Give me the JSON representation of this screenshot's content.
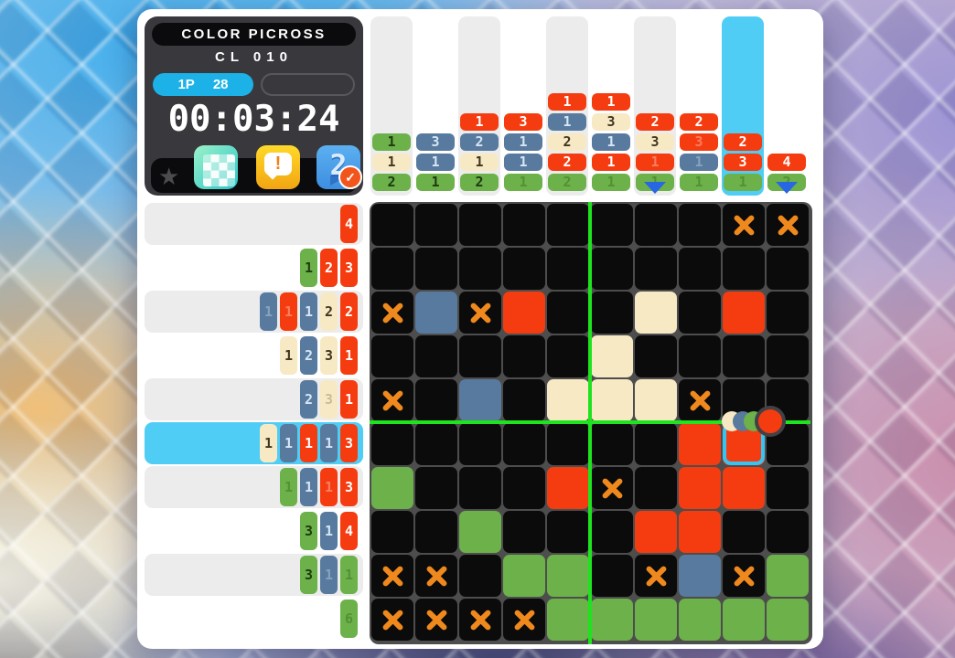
{
  "info": {
    "title": "COLOR PICROSS",
    "code": "CL 010",
    "player_label": "1P",
    "cleared_count": "28",
    "timer": "00:03:24",
    "star_glyph": "★",
    "icons": [
      {
        "name": "palette-grid-icon"
      },
      {
        "name": "alert-icon",
        "glyph": "!"
      },
      {
        "name": "page-2-icon",
        "glyph": "2",
        "badge_glyph": "✓"
      }
    ]
  },
  "colors": {
    "red": "#f53c10",
    "green": "#6cb149",
    "blue": "#577a9e",
    "beige": "#f8e9c5",
    "empty": "#0b0b0b",
    "x_mark": "#ef891d",
    "highlight": "#4fcdf5",
    "guide": "#1fe31f",
    "cursor": "#38c4f2"
  },
  "board": {
    "rows": 10,
    "cols": 10,
    "highlight_row": 6,
    "highlight_col": 9,
    "cursor": {
      "row": 6,
      "col": 9
    },
    "marker_columns": [
      7,
      10
    ],
    "col_hints": [
      [
        {
          "n": "1",
          "c": "green"
        },
        {
          "n": "1",
          "c": "beige"
        },
        {
          "n": "2",
          "c": "green"
        }
      ],
      [
        {
          "n": "3",
          "c": "blue"
        },
        {
          "n": "1",
          "c": "blue"
        },
        {
          "n": "1",
          "c": "green"
        }
      ],
      [
        {
          "n": "1",
          "c": "red"
        },
        {
          "n": "2",
          "c": "blue"
        },
        {
          "n": "1",
          "c": "beige"
        },
        {
          "n": "2",
          "c": "green"
        }
      ],
      [
        {
          "n": "3",
          "c": "red"
        },
        {
          "n": "1",
          "c": "blue"
        },
        {
          "n": "1",
          "c": "blue"
        },
        {
          "n": "1",
          "c": "green",
          "f": true
        }
      ],
      [
        {
          "n": "1",
          "c": "red"
        },
        {
          "n": "1",
          "c": "blue"
        },
        {
          "n": "2",
          "c": "beige"
        },
        {
          "n": "2",
          "c": "red"
        },
        {
          "n": "2",
          "c": "green",
          "f": true
        }
      ],
      [
        {
          "n": "1",
          "c": "red"
        },
        {
          "n": "3",
          "c": "beige"
        },
        {
          "n": "1",
          "c": "blue"
        },
        {
          "n": "1",
          "c": "red"
        },
        {
          "n": "1",
          "c": "green",
          "f": true
        }
      ],
      [
        {
          "n": "2",
          "c": "red"
        },
        {
          "n": "3",
          "c": "beige"
        },
        {
          "n": "1",
          "c": "red",
          "f": true
        },
        {
          "n": "1",
          "c": "green",
          "f": true
        }
      ],
      [
        {
          "n": "2",
          "c": "red"
        },
        {
          "n": "3",
          "c": "red",
          "f": true
        },
        {
          "n": "1",
          "c": "blue",
          "f": true
        },
        {
          "n": "1",
          "c": "green",
          "f": true
        }
      ],
      [
        {
          "n": "2",
          "c": "red"
        },
        {
          "n": "3",
          "c": "red"
        },
        {
          "n": "1",
          "c": "green",
          "f": true
        }
      ],
      [
        {
          "n": "4",
          "c": "red"
        },
        {
          "n": "2",
          "c": "green",
          "f": true
        }
      ]
    ],
    "row_hints": [
      [
        {
          "n": "4",
          "c": "red"
        }
      ],
      [
        {
          "n": "1",
          "c": "green"
        },
        {
          "n": "2",
          "c": "red"
        },
        {
          "n": "3",
          "c": "red"
        }
      ],
      [
        {
          "n": "1",
          "c": "blue",
          "f": true
        },
        {
          "n": "1",
          "c": "red",
          "f": true
        },
        {
          "n": "1",
          "c": "blue"
        },
        {
          "n": "2",
          "c": "beige"
        },
        {
          "n": "2",
          "c": "red"
        }
      ],
      [
        {
          "n": "1",
          "c": "beige"
        },
        {
          "n": "2",
          "c": "blue"
        },
        {
          "n": "3",
          "c": "beige"
        },
        {
          "n": "1",
          "c": "red"
        }
      ],
      [
        {
          "n": "2",
          "c": "blue"
        },
        {
          "n": "3",
          "c": "beige",
          "f": true
        },
        {
          "n": "1",
          "c": "red"
        }
      ],
      [
        {
          "n": "1",
          "c": "beige"
        },
        {
          "n": "1",
          "c": "blue"
        },
        {
          "n": "1",
          "c": "red"
        },
        {
          "n": "1",
          "c": "blue"
        },
        {
          "n": "3",
          "c": "red"
        }
      ],
      [
        {
          "n": "1",
          "c": "green",
          "f": true
        },
        {
          "n": "1",
          "c": "blue"
        },
        {
          "n": "1",
          "c": "red",
          "f": true
        },
        {
          "n": "3",
          "c": "red"
        }
      ],
      [
        {
          "n": "3",
          "c": "green"
        },
        {
          "n": "1",
          "c": "blue"
        },
        {
          "n": "4",
          "c": "red"
        }
      ],
      [
        {
          "n": "3",
          "c": "green"
        },
        {
          "n": "1",
          "c": "blue",
          "f": true
        },
        {
          "n": "1",
          "c": "green",
          "f": true
        }
      ],
      [
        {
          "n": "6",
          "c": "green",
          "f": true
        }
      ]
    ],
    "cells": [
      [
        "black",
        "black",
        "black",
        "black",
        "black",
        "black",
        "black",
        "black",
        "x",
        "x"
      ],
      [
        "black",
        "black",
        "black",
        "black",
        "black",
        "black",
        "black",
        "black",
        "black",
        "black"
      ],
      [
        "x",
        "blue",
        "x",
        "red",
        "black",
        "black",
        "beige",
        "black",
        "red",
        "black"
      ],
      [
        "black",
        "black",
        "black",
        "black",
        "black",
        "beige",
        "black",
        "black",
        "black",
        "black"
      ],
      [
        "x",
        "black",
        "blue",
        "black",
        "beige",
        "beige",
        "beige",
        "x",
        "black",
        "black"
      ],
      [
        "black",
        "black",
        "black",
        "black",
        "black",
        "black",
        "black",
        "red",
        "red",
        "black"
      ],
      [
        "green",
        "black",
        "black",
        "black",
        "red",
        "x",
        "black",
        "red",
        "red",
        "black"
      ],
      [
        "black",
        "black",
        "green",
        "black",
        "black",
        "black",
        "red",
        "red",
        "black",
        "black"
      ],
      [
        "x",
        "x",
        "black",
        "green",
        "green",
        "black",
        "x",
        "blue",
        "x",
        "green"
      ],
      [
        "x",
        "x",
        "x",
        "x",
        "green",
        "green",
        "green",
        "green",
        "green",
        "green"
      ]
    ]
  },
  "palette": {
    "colors": [
      "beige",
      "blue",
      "green"
    ],
    "selected": "red"
  }
}
